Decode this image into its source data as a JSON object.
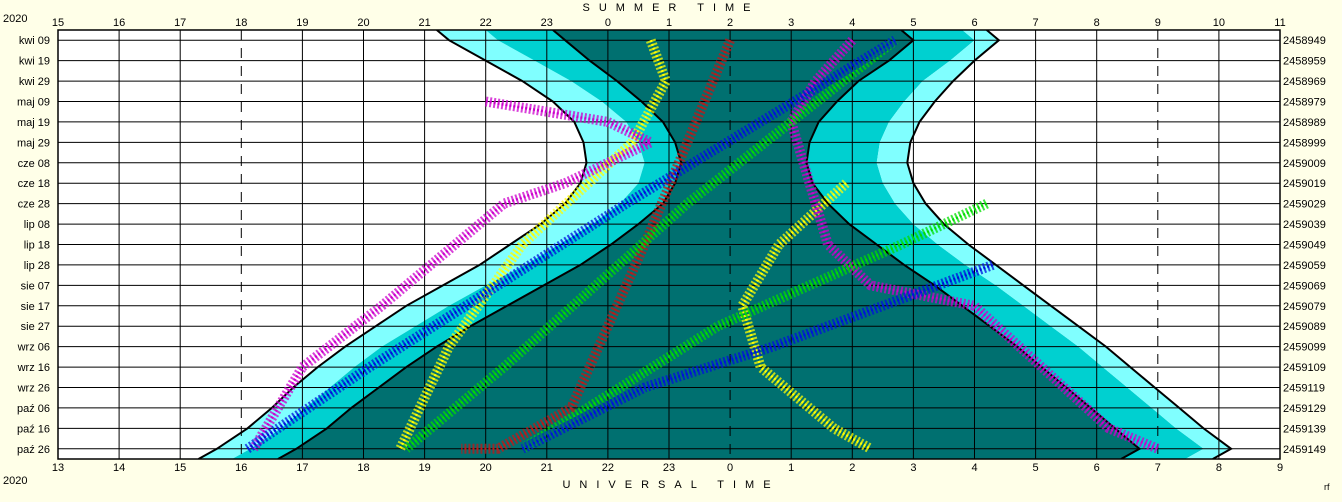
{
  "chart_data": {
    "type": "line",
    "year_label": "2020",
    "top_title": "SUMMER TIME",
    "bottom_title": "UNIVERSAL TIME",
    "corner_mark": "rf",
    "top_ticks": [
      "15",
      "16",
      "17",
      "18",
      "19",
      "20",
      "21",
      "22",
      "23",
      "0",
      "1",
      "2",
      "3",
      "4",
      "5",
      "6",
      "7",
      "8",
      "9",
      "10",
      "11"
    ],
    "bottom_ticks": [
      "13",
      "14",
      "15",
      "16",
      "17",
      "18",
      "19",
      "20",
      "21",
      "22",
      "23",
      "0",
      "1",
      "2",
      "3",
      "4",
      "5",
      "6",
      "7",
      "8",
      "9"
    ],
    "xlim_ut_hours": [
      13,
      33
    ],
    "dates": [
      "kwi 09",
      "kwi 19",
      "kwi 29",
      "maj 09",
      "maj 19",
      "maj 29",
      "cze 08",
      "cze 18",
      "cze 28",
      "lip 08",
      "lip 18",
      "lip 28",
      "sie 07",
      "sie 17",
      "sie 27",
      "wrz 06",
      "wrz 16",
      "wrz 26",
      "paź 06",
      "paź 16",
      "paź 26"
    ],
    "julian_days": [
      "2458949",
      "2458959",
      "2458969",
      "2458979",
      "2458989",
      "2458999",
      "2459009",
      "2459019",
      "2459029",
      "2459039",
      "2459049",
      "2459059",
      "2459069",
      "2459079",
      "2459089",
      "2459099",
      "2459109",
      "2459119",
      "2459129",
      "2459139",
      "2459149"
    ],
    "twilight_bands": {
      "colors": {
        "day": "#ffffff",
        "civil": "#80ffff",
        "nautical": "#00d0d0",
        "night": "#007070"
      },
      "sunset_ut": [
        19.4,
        20.0,
        20.6,
        21.1,
        21.45,
        21.6,
        21.65,
        21.55,
        21.3,
        20.9,
        20.4,
        19.9,
        19.3,
        18.7,
        18.2,
        17.7,
        17.25,
        16.85,
        16.5,
        16.1,
        15.6
      ],
      "civil_end_ut": [
        20.2,
        20.8,
        21.4,
        21.9,
        22.3,
        22.5,
        22.6,
        22.5,
        22.2,
        21.75,
        21.2,
        20.65,
        20.0,
        19.4,
        18.85,
        18.3,
        17.85,
        17.45,
        17.05,
        16.65,
        16.15
      ],
      "nautical_end_ut": [
        21.3,
        21.7,
        22.15,
        22.55,
        22.9,
        23.1,
        23.2,
        23.1,
        22.9,
        22.5,
        22.05,
        21.55,
        20.95,
        20.35,
        19.75,
        19.2,
        18.7,
        18.25,
        17.8,
        17.4,
        16.9
      ],
      "nautical_start_ut": [
        27.0,
        26.6,
        26.1,
        25.75,
        25.45,
        25.3,
        25.25,
        25.35,
        25.6,
        25.95,
        26.4,
        26.85,
        27.35,
        27.8,
        28.25,
        28.7,
        29.1,
        29.5,
        29.9,
        30.3,
        30.7
      ],
      "civil_start_ut": [
        28.0,
        27.6,
        27.15,
        26.85,
        26.6,
        26.45,
        26.4,
        26.5,
        26.7,
        27.0,
        27.4,
        27.85,
        28.35,
        28.8,
        29.25,
        29.7,
        30.1,
        30.5,
        30.9,
        31.3,
        31.75
      ],
      "sunrise_ut": [
        28.4,
        28.0,
        27.65,
        27.35,
        27.1,
        26.95,
        26.9,
        27.0,
        27.2,
        27.5,
        27.9,
        28.35,
        28.8,
        29.25,
        29.7,
        30.15,
        30.55,
        30.95,
        31.35,
        31.75,
        32.2
      ]
    },
    "series": [
      {
        "color": "#c01818",
        "x_ut": [
          24.0,
          23.3,
          22.6,
          22.0,
          21.4,
          20.8,
          20.2,
          19.6
        ],
        "date_index": [
          0,
          5,
          10,
          14,
          18,
          19,
          20,
          20
        ]
      },
      {
        "color": "#ffff00",
        "x_ut": [
          22.7,
          22.95,
          22.4,
          20.6,
          19.4,
          18.6
        ],
        "date_index": [
          0,
          2,
          5,
          10,
          15,
          20
        ]
      },
      {
        "color": "#ffff00",
        "x_ut": [
          25.9,
          24.8,
          24.2,
          24.5,
          25.7,
          26.3
        ],
        "date_index": [
          7,
          10,
          13,
          16,
          19,
          20
        ]
      },
      {
        "color": "#cc00cc",
        "x_ut": [
          20.0,
          22.0,
          22.7,
          21.3,
          20.3,
          18.3,
          17.0,
          16.2
        ],
        "date_index": [
          3,
          4,
          5,
          7,
          8,
          13,
          16,
          20
        ]
      },
      {
        "color": "#cc00cc",
        "x_ut": [
          26.0,
          25.4,
          25.0,
          25.6,
          26.3,
          28.0,
          30.2,
          31.0
        ],
        "date_index": [
          0,
          2,
          4,
          10,
          12,
          13,
          19,
          20
        ]
      },
      {
        "color": "#00dd00",
        "x_ut": [
          26.7,
          25.0,
          23.3,
          21.8,
          20.3,
          18.7
        ],
        "date_index": [
          0,
          4,
          8,
          12,
          16,
          20
        ]
      },
      {
        "color": "#00dd00",
        "x_ut": [
          28.2,
          26.8,
          25.3,
          23.8,
          22.2,
          20.6
        ],
        "date_index": [
          8,
          10,
          12,
          14,
          17,
          20
        ]
      },
      {
        "color": "#0010dd",
        "x_ut": [
          26.7,
          24.5,
          22.3,
          20.2,
          18.1,
          16.1
        ],
        "date_index": [
          0,
          4,
          8,
          12,
          16,
          20
        ]
      },
      {
        "color": "#0010dd",
        "x_ut": [
          28.3,
          26.5,
          24.7,
          22.6,
          20.6
        ],
        "date_index": [
          11,
          13,
          15,
          17,
          20
        ]
      }
    ]
  }
}
